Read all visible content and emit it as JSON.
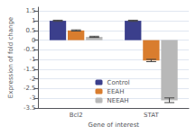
{
  "chart_data": {
    "type": "bar",
    "x_label": "Gene of interest",
    "y_label": "Expression of fold change",
    "categories": [
      "Bcl2",
      "STAT"
    ],
    "series": [
      {
        "name": "Control",
        "color": "#3b3f8c",
        "values": [
          1.0,
          1.0
        ],
        "errors": [
          0.03,
          0.03
        ]
      },
      {
        "name": "EEAH",
        "color": "#d97d2e",
        "values": [
          0.5,
          -1.05
        ],
        "errors": [
          0.03,
          0.06
        ]
      },
      {
        "name": "NEEAH",
        "color": "#b8b8b8",
        "values": [
          0.17,
          -3.1
        ],
        "errors": [
          0.03,
          0.12
        ]
      }
    ],
    "ylim": [
      -3.5,
      1.7
    ],
    "yticks": [
      1.5,
      1.0,
      0.5,
      0.0,
      -0.5,
      -1.0,
      -1.5,
      -2.0,
      -2.5,
      -3.0,
      -3.5
    ],
    "grid": true,
    "legend": "lower center"
  }
}
